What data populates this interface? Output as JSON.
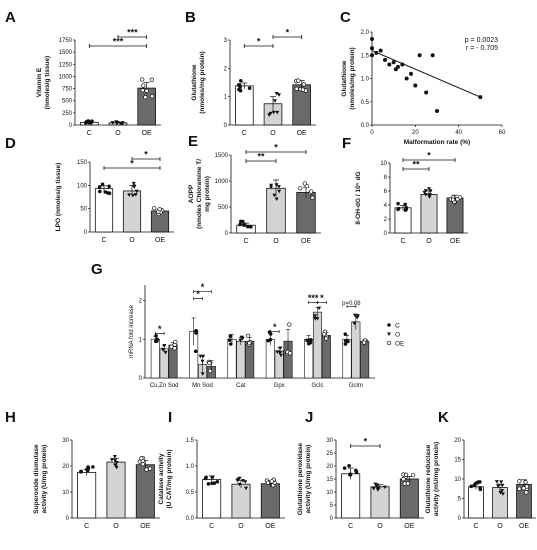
{
  "colors": {
    "C": "#ffffff",
    "O": "#d4d4d4",
    "OE": "#6a6a6a",
    "stroke": "#111111"
  },
  "chart_data": [
    {
      "id": "A",
      "type": "bar",
      "letter": "A",
      "categories": [
        "C",
        "O",
        "OE"
      ],
      "ylabel_lines": [
        "Vitamin E",
        "(nmoles/g tissue)"
      ],
      "yticks": [
        "0",
        "250",
        "500",
        "750",
        "1000",
        "1250",
        "1500",
        "1750"
      ],
      "ylim": [
        0,
        1750
      ],
      "values": [
        55,
        45,
        760
      ],
      "errors": [
        15,
        12,
        120
      ],
      "sig": [
        {
          "from": 0,
          "to": 2,
          "label": "***"
        },
        {
          "from": 1,
          "to": 2,
          "label": "***"
        }
      ]
    },
    {
      "id": "B",
      "type": "bar",
      "letter": "B",
      "categories": [
        "C",
        "O",
        "OE"
      ],
      "ylabel_lines": [
        "Glutathione",
        "(nmoles/mg protein)"
      ],
      "yticks": [
        "0",
        "1",
        "2",
        "3"
      ],
      "ylim": [
        0,
        3
      ],
      "values": [
        1.38,
        0.75,
        1.42
      ],
      "errors": [
        0.1,
        0.25,
        0.15
      ],
      "sig": [
        {
          "from": 0,
          "to": 1,
          "label": "*"
        },
        {
          "from": 1,
          "to": 2,
          "label": "*"
        }
      ]
    },
    {
      "id": "C",
      "type": "scatter",
      "letter": "C",
      "xlabel": "Malformation rate (%)",
      "ylabel_lines": [
        "Glutathione",
        "(nmoles/mg protein)"
      ],
      "xticks": [
        "0",
        "20",
        "40",
        "60"
      ],
      "xlim": [
        0,
        60
      ],
      "yticks": [
        "0.0",
        "0.5",
        "1.0",
        "1.5",
        "2.0"
      ],
      "ylim": [
        0,
        2
      ],
      "x": [
        0,
        0,
        0,
        2,
        4,
        6,
        8,
        10,
        11,
        12,
        14,
        16,
        18,
        20,
        22,
        25,
        28,
        30,
        50
      ],
      "y": [
        1.85,
        1.65,
        1.5,
        1.55,
        1.6,
        1.4,
        1.3,
        1.35,
        1.2,
        1.25,
        1.3,
        1.0,
        1.1,
        0.85,
        1.5,
        0.7,
        1.5,
        0.3,
        0.6
      ],
      "fit": [
        [
          0,
          1.6
        ],
        [
          50,
          0.6
        ]
      ],
      "annotation_lines": [
        "p = 0.0023",
        "r = - 0.705"
      ]
    },
    {
      "id": "D",
      "type": "bar",
      "letter": "D",
      "categories": [
        "C",
        "O",
        "OE"
      ],
      "ylabel_lines": [
        "LPO (nmoles/g tissue)"
      ],
      "yticks": [
        "0",
        "50",
        "100",
        "150"
      ],
      "ylim": [
        0,
        150
      ],
      "values": [
        93,
        88,
        45
      ],
      "errors": [
        6,
        12,
        4
      ],
      "sig": [
        {
          "from": 0,
          "to": 2,
          "label": "*"
        },
        {
          "from": 1,
          "to": 2,
          "label": "*"
        }
      ]
    },
    {
      "id": "E",
      "type": "bar",
      "letter": "E",
      "categories": [
        "C",
        "O",
        "OE"
      ],
      "ylabel_lines": [
        "AOPP",
        "(nmoles Chloramine T/",
        "mg protein)"
      ],
      "yticks": [
        "0",
        "500",
        "1000",
        "1500"
      ],
      "ylim": [
        0,
        1500
      ],
      "values": [
        150,
        860,
        780
      ],
      "errors": [
        40,
        160,
        100
      ],
      "sig": [
        {
          "from": 0,
          "to": 1,
          "label": "**"
        },
        {
          "from": 0,
          "to": 2,
          "label": "*"
        }
      ]
    },
    {
      "id": "F",
      "type": "bar",
      "letter": "F",
      "categories": [
        "C",
        "O",
        "OE"
      ],
      "ylabel_lines": [
        "8-OH-dG / 10⁵ dG"
      ],
      "yticks": [
        "0",
        "2",
        "4",
        "6",
        "8",
        "10"
      ],
      "ylim": [
        0,
        10
      ],
      "values": [
        3.6,
        5.5,
        5.0
      ],
      "errors": [
        0.35,
        0.5,
        0.4
      ],
      "sig": [
        {
          "from": 0,
          "to": 1,
          "label": "**"
        },
        {
          "from": 0,
          "to": 2,
          "label": "*"
        }
      ]
    },
    {
      "id": "G",
      "type": "bar",
      "letter": "G",
      "categories": [
        "Cu,Zn Sod",
        "Mn Sod",
        "Cat",
        "Gpx",
        "Gclc",
        "Gclm"
      ],
      "ylabel_lines": [
        "mRNA fold increase"
      ],
      "yticks": [
        "0",
        "1",
        "2"
      ],
      "ylim": [
        0,
        2.4
      ],
      "series": [
        {
          "name": "C",
          "values": [
            1.0,
            1.2,
            1.0,
            1.0,
            1.0,
            1.0
          ],
          "errors": [
            0.08,
            0.35,
            0.12,
            0.15,
            0.1,
            0.1
          ]
        },
        {
          "name": "O",
          "values": [
            0.75,
            0.35,
            0.95,
            0.7,
            1.7,
            1.45
          ],
          "errors": [
            0.08,
            0.2,
            0.1,
            0.08,
            0.12,
            0.2
          ]
        },
        {
          "name": "OE",
          "values": [
            0.85,
            0.3,
            0.95,
            0.95,
            1.1,
            0.95
          ],
          "errors": [
            0.06,
            0.15,
            0.1,
            0.3,
            0.08,
            0.05
          ]
        }
      ],
      "sig": [
        {
          "group": 0,
          "from": 0,
          "to": 1,
          "label": "*"
        },
        {
          "group": 1,
          "from": 0,
          "to": 1,
          "label": "*"
        },
        {
          "group": 1,
          "from": 0,
          "to": 2,
          "label": "*"
        },
        {
          "group": 3,
          "from": 0,
          "to": 1,
          "label": "*"
        },
        {
          "group": 4,
          "from": 0,
          "to": 1,
          "label": "***"
        },
        {
          "group": 4,
          "from": 1,
          "to": 2,
          "label": "*"
        },
        {
          "group": 5,
          "from": 0,
          "to": 1,
          "label": "p=0.08"
        }
      ]
    },
    {
      "id": "H",
      "type": "bar",
      "letter": "H",
      "categories": [
        "C",
        "O",
        "OE"
      ],
      "ylabel_lines": [
        "Superoxide dismutase",
        "activity (U/mg protein)"
      ],
      "yticks": [
        "0",
        "10",
        "20",
        "30"
      ],
      "ylim": [
        0,
        30
      ],
      "values": [
        17.5,
        21.5,
        20.5
      ],
      "errors": [
        1.2,
        1.5,
        1.6
      ],
      "sig": []
    },
    {
      "id": "I",
      "type": "bar",
      "letter": "I",
      "categories": [
        "C",
        "O",
        "OE"
      ],
      "ylabel_lines": [
        "Catalase activity",
        "(U CAT/mg protein)"
      ],
      "yticks": [
        "0.0",
        "0.5",
        "1.0",
        "1.5"
      ],
      "ylim": [
        0,
        1.5
      ],
      "values": [
        0.74,
        0.65,
        0.66
      ],
      "errors": [
        0.07,
        0.07,
        0.06
      ],
      "sig": []
    },
    {
      "id": "J",
      "type": "bar",
      "letter": "J",
      "categories": [
        "C",
        "O",
        "OE"
      ],
      "ylabel_lines": [
        "Glutathione peroxidase",
        "activity (U/mg protein)"
      ],
      "yticks": [
        "0",
        "5",
        "10",
        "15",
        "20",
        "25",
        "30"
      ],
      "ylim": [
        0,
        30
      ],
      "values": [
        17,
        12,
        15
      ],
      "errors": [
        2.2,
        0.8,
        1.0
      ],
      "sig": [
        {
          "from": 0,
          "to": 1,
          "label": "*"
        }
      ]
    },
    {
      "id": "K",
      "type": "bar",
      "letter": "K",
      "categories": [
        "C",
        "O",
        "OE"
      ],
      "ylabel_lines": [
        "Glutathione reductase",
        "activity (mU/mg protein)"
      ],
      "yticks": [
        "0",
        "5",
        "10",
        "15",
        "20"
      ],
      "ylim": [
        0,
        20
      ],
      "values": [
        8,
        7.8,
        8.6
      ],
      "errors": [
        0.7,
        0.9,
        1.2
      ],
      "sig": []
    }
  ]
}
